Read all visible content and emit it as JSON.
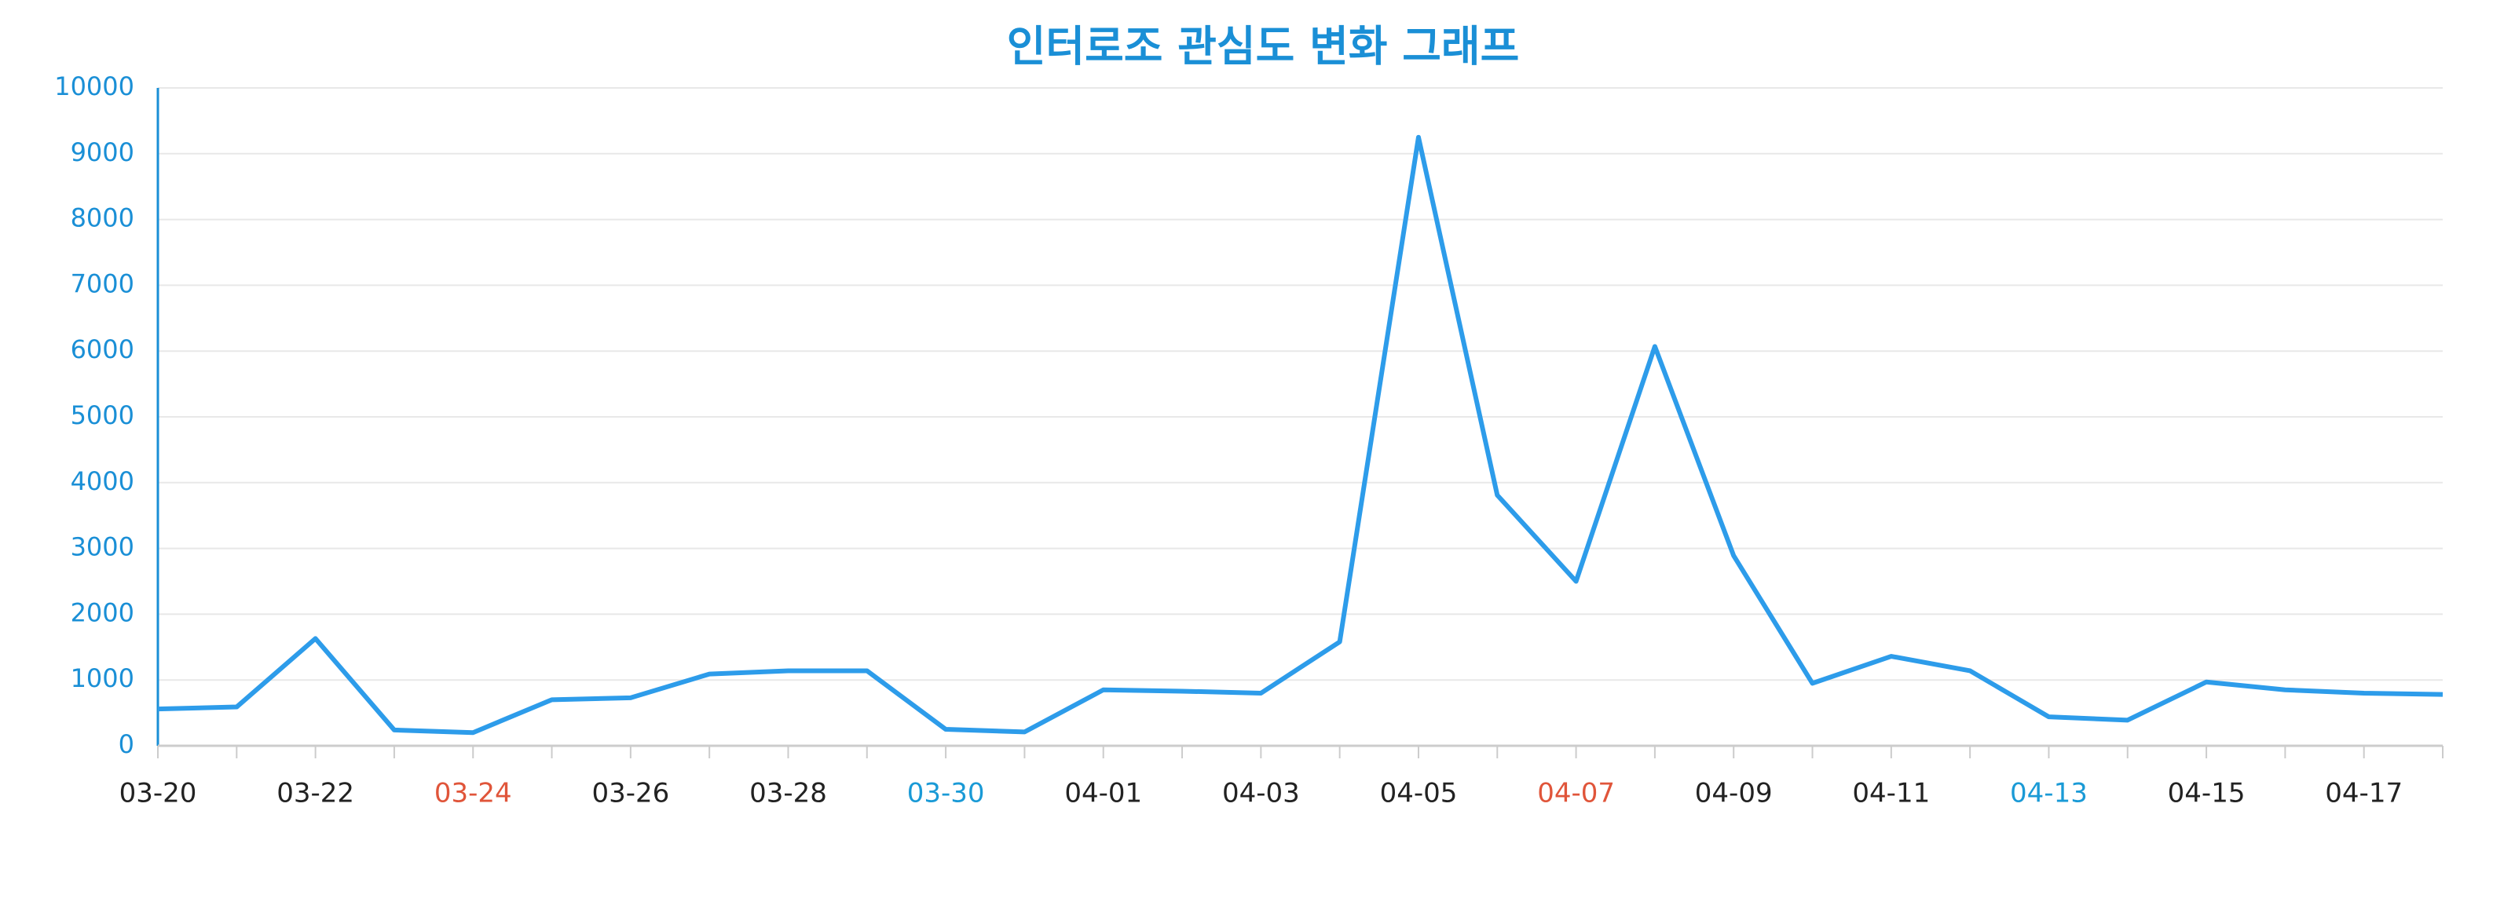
{
  "chart_data": {
    "type": "line",
    "title": "인터로조 관심도 변화 그래프",
    "categories": [
      "03-20",
      null,
      "03-22",
      null,
      "03-24",
      null,
      "03-26",
      null,
      "03-28",
      null,
      "03-30",
      null,
      "04-01",
      null,
      "04-03",
      null,
      "04-05",
      null,
      "04-07",
      null,
      "04-09",
      null,
      "04-11",
      null,
      "04-13",
      null,
      "04-15",
      null,
      "04-17",
      null
    ],
    "category_label_colors": [
      "#222222",
      null,
      "#222222",
      null,
      "#e0553a",
      null,
      "#222222",
      null,
      "#222222",
      null,
      "#1a9ad6",
      null,
      "#222222",
      null,
      "#222222",
      null,
      "#222222",
      null,
      "#e0553a",
      null,
      "#222222",
      null,
      "#222222",
      null,
      "#1a9ad6",
      null,
      "#222222",
      null,
      "#222222",
      null
    ],
    "series": [
      {
        "color": "#2d9cea",
        "values": [
          560,
          590,
          1630,
          240,
          200,
          700,
          730,
          1090,
          1140,
          1140,
          250,
          210,
          850,
          830,
          800,
          1580,
          9250,
          3810,
          2500,
          6070,
          2890,
          950,
          1360,
          1140,
          440,
          390,
          970,
          850,
          800,
          780
        ]
      }
    ],
    "ylim": [
      0,
      10000
    ],
    "yticks": [
      0,
      1000,
      2000,
      3000,
      4000,
      5000,
      6000,
      7000,
      8000,
      9000,
      10000
    ],
    "grid": true,
    "axis_color": "#1a8fd6"
  }
}
